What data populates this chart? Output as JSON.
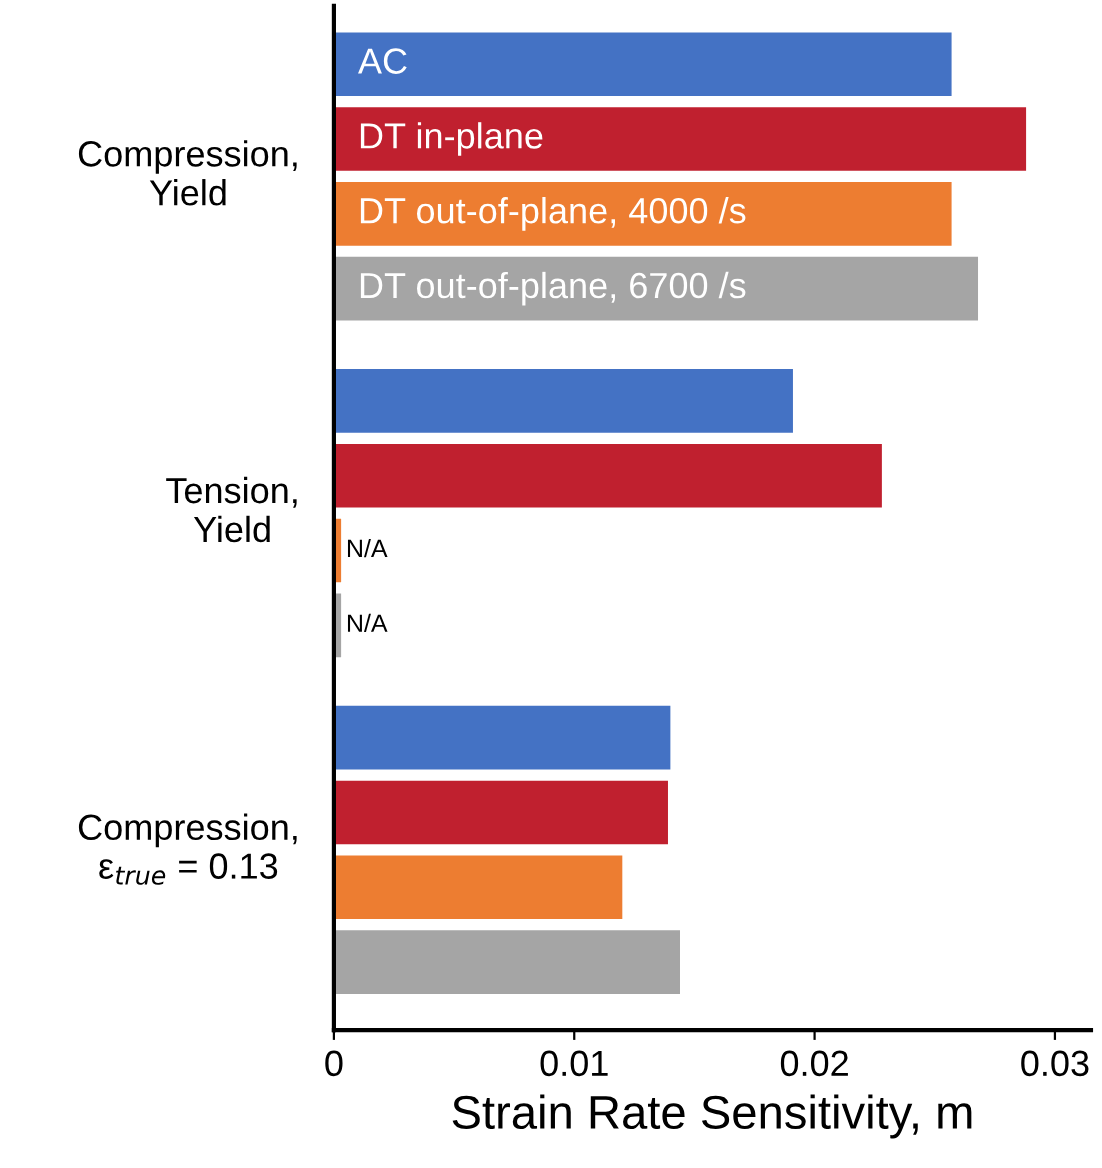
{
  "chart_data": {
    "type": "bar",
    "orientation": "horizontal",
    "xlabel": "Strain Rate Sensitivity, m",
    "categories": [
      "Compression,\nYield",
      "Tension,\nYield",
      "Compression,\nε$_{true}$ = 0.13"
    ],
    "series": [
      {
        "name": "AC",
        "color": "#4472c4",
        "values": [
          0.0257,
          0.0191,
          0.014
        ]
      },
      {
        "name": "DT in-plane",
        "color": "#c0202f",
        "values": [
          0.0288,
          0.0228,
          0.0139
        ]
      },
      {
        "name": "DT out-of-plane, 4000 /s",
        "color": "#ed7d31",
        "values": [
          0.0257,
          0.0003,
          0.012
        ],
        "value_labels": [
          null,
          "N/A",
          null
        ]
      },
      {
        "name": "DT out-of-plane, 6700 /s",
        "color": "#a5a5a5",
        "values": [
          0.0268,
          0.0003,
          0.0144
        ],
        "value_labels": [
          null,
          "N/A",
          null
        ]
      }
    ],
    "xlim": [
      0,
      0.0315
    ],
    "xticks": [
      0,
      0.01,
      0.02,
      0.03
    ],
    "grid": false,
    "legend": false
  }
}
